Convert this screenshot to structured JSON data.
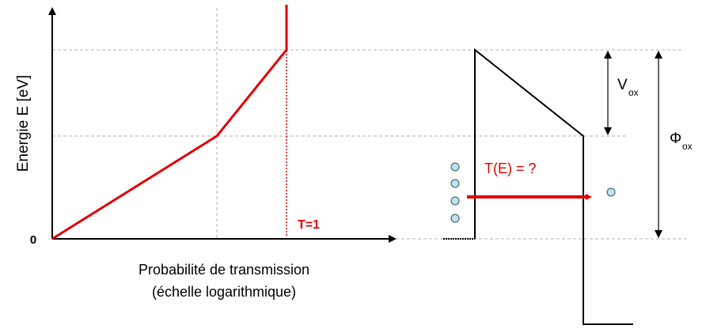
{
  "diagram": {
    "y_axis_label": "Energie E [eV]",
    "origin_label": "0",
    "t1_label": "T=1",
    "x_axis_label_line1": "Probabilité de transmission",
    "x_axis_label_line2": "(échelle logarithmique)",
    "v_symbol": "V",
    "v_subscript": "ox",
    "phi_symbol": "Φ",
    "phi_subscript": "ox",
    "question_label": "T(E) = ?"
  }
}
